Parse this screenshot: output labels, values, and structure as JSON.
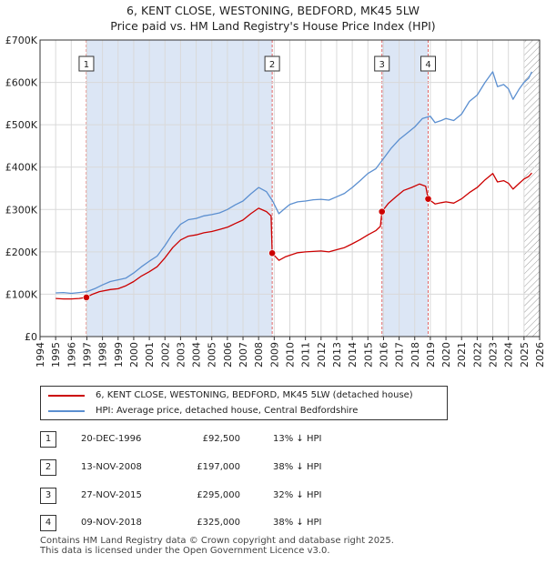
{
  "title_line1": "6, KENT CLOSE, WESTONING, BEDFORD, MK45 5LW",
  "title_line2": "Price paid vs. HM Land Registry's House Price Index (HPI)",
  "colors": {
    "price": "#cc0000",
    "hpi": "#5b8fd0",
    "shade": "#dce6f5",
    "marker_line": "#e06666"
  },
  "legend": {
    "price_label": "6, KENT CLOSE, WESTONING, BEDFORD, MK45 5LW (detached house)",
    "hpi_label": "HPI: Average price, detached house, Central Bedfordshire"
  },
  "sales": [
    {
      "num": "1",
      "date": "20-DEC-1996",
      "price": "£92,500",
      "hpi": "13% ↓ HPI"
    },
    {
      "num": "2",
      "date": "13-NOV-2008",
      "price": "£197,000",
      "hpi": "38% ↓ HPI"
    },
    {
      "num": "3",
      "date": "27-NOV-2015",
      "price": "£295,000",
      "hpi": "32% ↓ HPI"
    },
    {
      "num": "4",
      "date": "09-NOV-2018",
      "price": "£325,000",
      "hpi": "38% ↓ HPI"
    }
  ],
  "footer": {
    "line1": "Contains HM Land Registry data © Crown copyright and database right 2025.",
    "line2": "This data is licensed under the Open Government Licence v3.0."
  },
  "chart_data": {
    "type": "line",
    "title": "6, KENT CLOSE, WESTONING, BEDFORD, MK45 5LW — Price paid vs. HM Land Registry's House Price Index (HPI)",
    "xlim": [
      1994,
      2026
    ],
    "ylim": [
      0,
      700000
    ],
    "y_ticks": [
      {
        "value": 0,
        "label": "£0"
      },
      {
        "value": 100000,
        "label": "£100K"
      },
      {
        "value": 200000,
        "label": "£200K"
      },
      {
        "value": 300000,
        "label": "£300K"
      },
      {
        "value": 400000,
        "label": "£400K"
      },
      {
        "value": 500000,
        "label": "£500K"
      },
      {
        "value": 600000,
        "label": "£600K"
      },
      {
        "value": 700000,
        "label": "£700K"
      }
    ],
    "x_ticks": [
      "1994",
      "1995",
      "1996",
      "1997",
      "1998",
      "1999",
      "2000",
      "2001",
      "2002",
      "2003",
      "2004",
      "2005",
      "2006",
      "2007",
      "2008",
      "2009",
      "2010",
      "2011",
      "2012",
      "2013",
      "2014",
      "2015",
      "2016",
      "2017",
      "2018",
      "2019",
      "2020",
      "2021",
      "2022",
      "2023",
      "2024",
      "2025",
      "2026"
    ],
    "shaded_ranges": [
      [
        1996.97,
        2008.87
      ],
      [
        2015.9,
        2018.86
      ]
    ],
    "hatched_from": 2025.0,
    "sale_markers": [
      {
        "label": "1",
        "x": 1996.97,
        "value": 92500
      },
      {
        "label": "2",
        "x": 2008.87,
        "value": 197000
      },
      {
        "label": "3",
        "x": 2015.9,
        "value": 295000
      },
      {
        "label": "4",
        "x": 2018.86,
        "value": 325000
      }
    ],
    "series": [
      {
        "name": "HPI: Average price, detached house, Central Bedfordshire",
        "color": "#5b8fd0",
        "points": [
          [
            1995.0,
            103000
          ],
          [
            1995.5,
            104000
          ],
          [
            1996.0,
            102000
          ],
          [
            1996.5,
            104000
          ],
          [
            1997.0,
            106000
          ],
          [
            1997.5,
            113000
          ],
          [
            1998.0,
            122000
          ],
          [
            1998.5,
            130000
          ],
          [
            1999.0,
            134000
          ],
          [
            1999.5,
            138000
          ],
          [
            2000.0,
            150000
          ],
          [
            2000.5,
            165000
          ],
          [
            2001.0,
            178000
          ],
          [
            2001.5,
            190000
          ],
          [
            2002.0,
            215000
          ],
          [
            2002.5,
            243000
          ],
          [
            2003.0,
            265000
          ],
          [
            2003.5,
            276000
          ],
          [
            2004.0,
            279000
          ],
          [
            2004.5,
            285000
          ],
          [
            2005.0,
            288000
          ],
          [
            2005.5,
            292000
          ],
          [
            2006.0,
            300000
          ],
          [
            2006.5,
            311000
          ],
          [
            2007.0,
            320000
          ],
          [
            2007.5,
            337000
          ],
          [
            2008.0,
            352000
          ],
          [
            2008.5,
            342000
          ],
          [
            2008.9,
            320000
          ],
          [
            2009.3,
            290000
          ],
          [
            2009.7,
            303000
          ],
          [
            2010.0,
            312000
          ],
          [
            2010.5,
            318000
          ],
          [
            2011.0,
            320000
          ],
          [
            2011.5,
            323000
          ],
          [
            2012.0,
            324000
          ],
          [
            2012.5,
            322000
          ],
          [
            2013.0,
            330000
          ],
          [
            2013.5,
            338000
          ],
          [
            2014.0,
            352000
          ],
          [
            2014.5,
            368000
          ],
          [
            2015.0,
            385000
          ],
          [
            2015.5,
            396000
          ],
          [
            2016.0,
            420000
          ],
          [
            2016.5,
            445000
          ],
          [
            2017.0,
            465000
          ],
          [
            2017.5,
            480000
          ],
          [
            2018.0,
            495000
          ],
          [
            2018.5,
            515000
          ],
          [
            2019.0,
            520000
          ],
          [
            2019.3,
            505000
          ],
          [
            2019.7,
            510000
          ],
          [
            2020.0,
            515000
          ],
          [
            2020.5,
            510000
          ],
          [
            2021.0,
            525000
          ],
          [
            2021.5,
            555000
          ],
          [
            2022.0,
            570000
          ],
          [
            2022.5,
            600000
          ],
          [
            2023.0,
            625000
          ],
          [
            2023.3,
            590000
          ],
          [
            2023.7,
            595000
          ],
          [
            2024.0,
            585000
          ],
          [
            2024.3,
            560000
          ],
          [
            2024.7,
            585000
          ],
          [
            2025.0,
            600000
          ],
          [
            2025.3,
            610000
          ],
          [
            2025.5,
            625000
          ]
        ]
      },
      {
        "name": "6, KENT CLOSE, WESTONING, BEDFORD, MK45 5LW (detached house)",
        "color": "#cc0000",
        "points": [
          [
            1995.0,
            90000
          ],
          [
            1995.5,
            89000
          ],
          [
            1996.0,
            89000
          ],
          [
            1996.5,
            90000
          ],
          [
            1996.97,
            92500
          ],
          [
            1997.3,
            99000
          ],
          [
            1997.8,
            106000
          ],
          [
            1998.5,
            111000
          ],
          [
            1999.0,
            113000
          ],
          [
            1999.5,
            120000
          ],
          [
            2000.0,
            130000
          ],
          [
            2000.5,
            143000
          ],
          [
            2001.0,
            153000
          ],
          [
            2001.5,
            165000
          ],
          [
            2002.0,
            186000
          ],
          [
            2002.5,
            210000
          ],
          [
            2003.0,
            228000
          ],
          [
            2003.5,
            237000
          ],
          [
            2004.0,
            240000
          ],
          [
            2004.5,
            245000
          ],
          [
            2005.0,
            248000
          ],
          [
            2005.5,
            253000
          ],
          [
            2006.0,
            258000
          ],
          [
            2006.5,
            267000
          ],
          [
            2007.0,
            275000
          ],
          [
            2007.5,
            290000
          ],
          [
            2008.0,
            303000
          ],
          [
            2008.5,
            295000
          ],
          [
            2008.8,
            285000
          ],
          [
            2008.87,
            197000
          ],
          [
            2009.3,
            180000
          ],
          [
            2009.7,
            188000
          ],
          [
            2010.0,
            192000
          ],
          [
            2010.5,
            198000
          ],
          [
            2011.0,
            200000
          ],
          [
            2011.5,
            201000
          ],
          [
            2012.0,
            202000
          ],
          [
            2012.5,
            200000
          ],
          [
            2013.0,
            205000
          ],
          [
            2013.5,
            210000
          ],
          [
            2014.0,
            219000
          ],
          [
            2014.5,
            229000
          ],
          [
            2015.0,
            240000
          ],
          [
            2015.5,
            250000
          ],
          [
            2015.8,
            260000
          ],
          [
            2015.9,
            295000
          ],
          [
            2016.3,
            314000
          ],
          [
            2016.8,
            330000
          ],
          [
            2017.3,
            345000
          ],
          [
            2017.8,
            352000
          ],
          [
            2018.3,
            360000
          ],
          [
            2018.7,
            355000
          ],
          [
            2018.86,
            325000
          ],
          [
            2019.3,
            313000
          ],
          [
            2019.7,
            316000
          ],
          [
            2020.0,
            318000
          ],
          [
            2020.5,
            315000
          ],
          [
            2021.0,
            325000
          ],
          [
            2021.5,
            340000
          ],
          [
            2022.0,
            352000
          ],
          [
            2022.5,
            370000
          ],
          [
            2023.0,
            385000
          ],
          [
            2023.3,
            365000
          ],
          [
            2023.7,
            368000
          ],
          [
            2024.0,
            362000
          ],
          [
            2024.3,
            348000
          ],
          [
            2024.7,
            362000
          ],
          [
            2025.0,
            372000
          ],
          [
            2025.3,
            378000
          ],
          [
            2025.5,
            386000
          ]
        ]
      }
    ]
  }
}
